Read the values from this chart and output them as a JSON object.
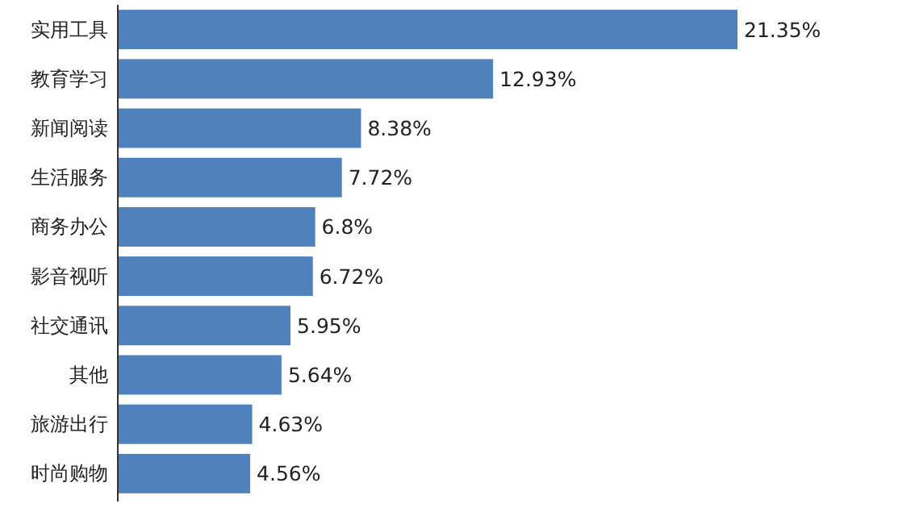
{
  "chart_data": {
    "type": "bar",
    "orientation": "horizontal",
    "categories": [
      "实用工具",
      "教育学习",
      "新闻阅读",
      "生活服务",
      "商务办公",
      "影音视听",
      "社交通讯",
      "其他",
      "旅游出行",
      "时尚购物"
    ],
    "values": [
      21.35,
      12.93,
      8.38,
      7.72,
      6.8,
      6.72,
      5.95,
      5.64,
      4.63,
      4.56
    ],
    "value_labels": [
      "21.35%",
      "12.93%",
      "8.38%",
      "7.72%",
      "6.8%",
      "6.72%",
      "5.95%",
      "5.64%",
      "4.63%",
      "4.56%"
    ],
    "color": "#4f81bd",
    "tick_labels": "y"
  }
}
